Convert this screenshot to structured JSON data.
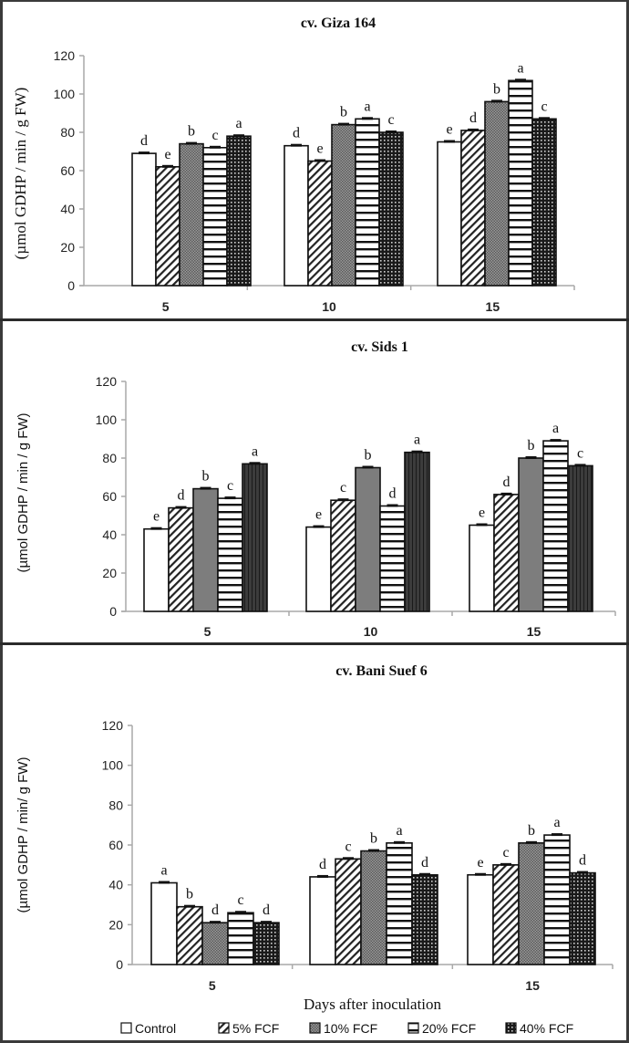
{
  "chart_data": [
    {
      "type": "bar",
      "title": "cv. Giza 164",
      "ylabel": "(µmol GDHP / min / g FW)",
      "xlabel": "",
      "categories": [
        "5",
        "10",
        "15"
      ],
      "ylim": [
        0,
        120
      ],
      "yticks": [
        0,
        20,
        40,
        60,
        80,
        100,
        120
      ],
      "series": [
        {
          "name": "Control",
          "values": [
            69,
            73,
            75
          ],
          "letters": [
            "d",
            "d",
            "e"
          ]
        },
        {
          "name": "5% FCF",
          "values": [
            62,
            65,
            81
          ],
          "letters": [
            "e",
            "e",
            "d"
          ]
        },
        {
          "name": "10% FCF",
          "values": [
            74,
            84,
            96
          ],
          "letters": [
            "b",
            "b",
            "b"
          ]
        },
        {
          "name": "20% FCF",
          "values": [
            72,
            87,
            107
          ],
          "letters": [
            "c",
            "a",
            "a"
          ]
        },
        {
          "name": "40% FCF",
          "values": [
            78,
            80,
            87
          ],
          "letters": [
            "a",
            "c",
            "c"
          ]
        }
      ],
      "error_bars": true,
      "grid": false
    },
    {
      "type": "bar",
      "title": "cv. Sids 1",
      "ylabel": "(µmol GDHP /  min / g FW)",
      "xlabel": "",
      "categories": [
        "5",
        "10",
        "15"
      ],
      "ylim": [
        0,
        120
      ],
      "yticks": [
        0,
        20,
        40,
        60,
        80,
        100,
        120
      ],
      "series": [
        {
          "name": "Control",
          "values": [
            43,
            44,
            45
          ],
          "letters": [
            "e",
            "e",
            "e"
          ]
        },
        {
          "name": "5% FCF",
          "values": [
            54,
            58,
            61
          ],
          "letters": [
            "d",
            "c",
            "d"
          ]
        },
        {
          "name": "10% FCF",
          "values": [
            64,
            75,
            80
          ],
          "letters": [
            "b",
            "b",
            "b"
          ]
        },
        {
          "name": "20% FCF",
          "values": [
            59,
            55,
            89
          ],
          "letters": [
            "c",
            "d",
            "a"
          ]
        },
        {
          "name": "40% FCF",
          "values": [
            77,
            83,
            76
          ],
          "letters": [
            "a",
            "a",
            "c"
          ]
        }
      ],
      "error_bars": true,
      "grid": false
    },
    {
      "type": "bar",
      "title": "cv. Bani Suef 6",
      "ylabel": "(µmol GDHP / min/ g FW)",
      "xlabel": "Days after inoculation",
      "categories": [
        "5",
        "",
        "15"
      ],
      "ylim": [
        0,
        120
      ],
      "yticks": [
        0,
        20,
        40,
        60,
        80,
        100,
        120
      ],
      "series": [
        {
          "name": "Control",
          "values": [
            41,
            44,
            45
          ],
          "letters": [
            "a",
            "d",
            "e"
          ]
        },
        {
          "name": "5% FCF",
          "values": [
            29,
            53,
            50
          ],
          "letters": [
            "b",
            "c",
            "c"
          ]
        },
        {
          "name": "10% FCF",
          "values": [
            21,
            57,
            61
          ],
          "letters": [
            "d",
            "b",
            "b"
          ]
        },
        {
          "name": "20% FCF",
          "values": [
            26,
            61,
            65
          ],
          "letters": [
            "c",
            "a",
            "a"
          ]
        },
        {
          "name": "40% FCF",
          "values": [
            21,
            45,
            46
          ],
          "letters": [
            "d",
            "d",
            "d"
          ]
        }
      ],
      "error_bars": true,
      "grid": false
    }
  ],
  "legend": {
    "placement": "bottom",
    "items": [
      {
        "name": "Control",
        "pattern": "white"
      },
      {
        "name": "5% FCF",
        "pattern": "diagonal-hatch"
      },
      {
        "name": "10% FCF",
        "pattern": "gray-checker"
      },
      {
        "name": "20% FCF",
        "pattern": "horizontal-stripes"
      },
      {
        "name": "40% FCF",
        "pattern": "dark-dots"
      }
    ]
  }
}
